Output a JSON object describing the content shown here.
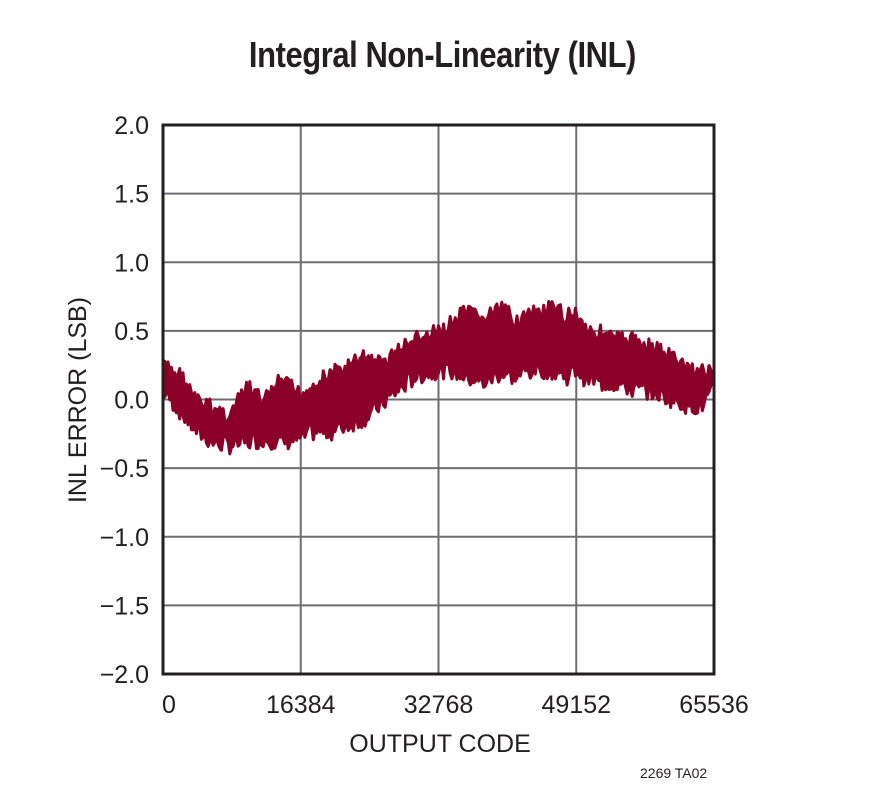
{
  "chart_data": {
    "type": "area",
    "title": "Integral Non-Linearity (INL)",
    "xlabel": "OUTPUT CODE",
    "ylabel": "INL ERROR (LSB)",
    "xlim": [
      0,
      65536
    ],
    "ylim": [
      -2.0,
      2.0
    ],
    "grid": true,
    "x_ticks": [
      "0",
      "16384",
      "32768",
      "49152",
      "65536"
    ],
    "y_ticks": [
      "2.0",
      "1.5",
      "1.0",
      "0.5",
      "0.0",
      "−0.5",
      "−1.0",
      "−1.5",
      "−2.0"
    ],
    "series": [
      {
        "name": "INL upper envelope",
        "x": [
          0,
          2000,
          4000,
          6000,
          8000,
          10000,
          12000,
          14000,
          16384,
          18000,
          20000,
          22000,
          24000,
          26000,
          28000,
          30000,
          32768,
          34000,
          36000,
          38000,
          40000,
          42000,
          44000,
          46000,
          48000,
          49152,
          50000,
          52000,
          54000,
          56000,
          58000,
          60000,
          62000,
          64000,
          65536
        ],
        "values": [
          0.3,
          0.25,
          0.05,
          0.0,
          -0.05,
          0.15,
          0.05,
          0.2,
          0.1,
          0.18,
          0.25,
          0.3,
          0.38,
          0.32,
          0.42,
          0.5,
          0.55,
          0.6,
          0.7,
          0.65,
          0.72,
          0.65,
          0.68,
          0.72,
          0.68,
          0.7,
          0.6,
          0.55,
          0.5,
          0.5,
          0.45,
          0.4,
          0.3,
          0.28,
          0.25
        ]
      },
      {
        "name": "INL lower envelope",
        "x": [
          0,
          2000,
          4000,
          6000,
          8000,
          10000,
          12000,
          14000,
          16384,
          18000,
          20000,
          22000,
          24000,
          26000,
          28000,
          30000,
          32768,
          34000,
          36000,
          38000,
          40000,
          42000,
          44000,
          46000,
          48000,
          49152,
          50000,
          52000,
          54000,
          56000,
          58000,
          60000,
          62000,
          64000,
          65536
        ],
        "values": [
          0.0,
          -0.15,
          -0.3,
          -0.38,
          -0.4,
          -0.38,
          -0.35,
          -0.38,
          -0.35,
          -0.3,
          -0.3,
          -0.25,
          -0.2,
          -0.1,
          0.0,
          0.1,
          0.15,
          0.15,
          0.1,
          0.05,
          0.12,
          0.1,
          0.15,
          0.15,
          0.1,
          0.15,
          0.1,
          0.05,
          0.05,
          0.0,
          0.0,
          -0.05,
          -0.1,
          -0.12,
          0.0
        ]
      }
    ],
    "colors": {
      "trace": "#8b0028",
      "grid": "#6d6e71",
      "frame": "#231f20"
    }
  },
  "footer_code": "2269 TA02"
}
